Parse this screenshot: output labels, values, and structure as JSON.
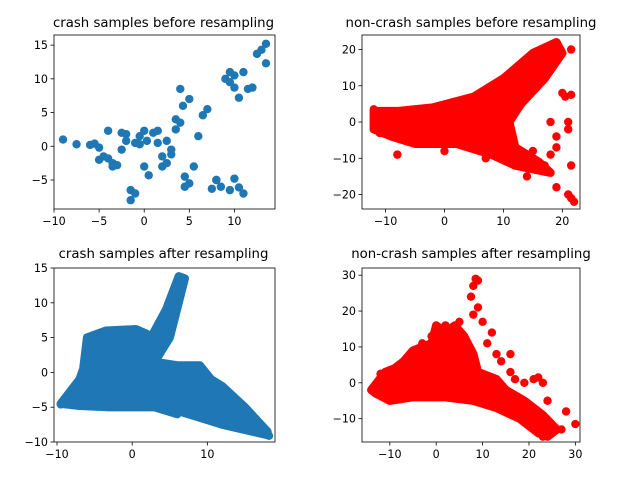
{
  "chart_data": [
    {
      "type": "scatter",
      "title": "crash samples before resampling",
      "color": "#1f77b4",
      "marker_style": "points",
      "xlim": [
        -10,
        14.5
      ],
      "ylim": [
        -9.3,
        16.5
      ],
      "xticks": [
        -10,
        -5,
        0,
        5,
        10
      ],
      "yticks": [
        -5,
        0,
        5,
        10,
        15
      ],
      "xlabel": "",
      "ylabel": "",
      "x": [
        -9,
        -7.5,
        -6,
        -5.5,
        -5,
        -5,
        -4.5,
        -4,
        -4,
        -3.5,
        -3.5,
        -3,
        -2.5,
        -2.5,
        -2,
        -2,
        -1.5,
        -1.5,
        -1,
        -1,
        -0.5,
        -0.5,
        0,
        0,
        0.3,
        0.5,
        1,
        1.5,
        1.5,
        2,
        2,
        2.5,
        2.5,
        3,
        3,
        3.5,
        3.5,
        4,
        4,
        4.3,
        4.5,
        4.5,
        5,
        5,
        5.5,
        6,
        6.5,
        7,
        7.5,
        8,
        8.5,
        9,
        9.5,
        9.5,
        10,
        10,
        10,
        10.5,
        11,
        11.5,
        12,
        12.5,
        13,
        13.5,
        13.5,
        10.5,
        9.5,
        8,
        11
      ],
      "y": [
        1,
        0.3,
        0.2,
        0.4,
        -0.2,
        -2,
        -1.5,
        2.3,
        -1.8,
        -2.5,
        -3,
        -2.8,
        2,
        -0.5,
        1.8,
        0.8,
        -8,
        -6.5,
        0.5,
        -7,
        1.5,
        0.3,
        2.3,
        -3,
        0.8,
        -4.3,
        2,
        0.5,
        2.3,
        -1.5,
        -3,
        0.8,
        -2.5,
        -1.2,
        -0.5,
        4,
        2.5,
        3.5,
        8.5,
        6,
        -4.5,
        -6,
        -5.5,
        7,
        -3,
        1.5,
        4.6,
        5.5,
        -6.3,
        -5,
        -6,
        10,
        9.5,
        11,
        8.7,
        10.5,
        -4.8,
        7.2,
        11,
        8.5,
        8.7,
        13.7,
        14.3,
        12.3,
        15.2,
        -6.1,
        -6.5,
        -5,
        -7
      ]
    },
    {
      "type": "scatter",
      "title": "non-crash samples before resampling",
      "color": "#ff0000",
      "marker_style": "dense-cloud",
      "xlim": [
        -14,
        23
      ],
      "ylim": [
        -24,
        24
      ],
      "xticks": [
        -10,
        0,
        10,
        20
      ],
      "yticks": [
        -20,
        -10,
        0,
        10,
        20
      ],
      "xlabel": "",
      "ylabel": "",
      "hull": [
        [
          -12,
          3
        ],
        [
          -8,
          3
        ],
        [
          -2,
          4
        ],
        [
          5,
          7
        ],
        [
          10,
          12
        ],
        [
          15,
          19
        ],
        [
          19,
          22
        ],
        [
          20,
          19
        ],
        [
          17,
          12
        ],
        [
          13,
          5
        ],
        [
          11,
          0
        ],
        [
          12,
          -7
        ],
        [
          16,
          -11
        ],
        [
          18,
          -14
        ],
        [
          12,
          -12
        ],
        [
          8,
          -9
        ],
        [
          2,
          -6
        ],
        [
          -5,
          -6
        ],
        [
          -9,
          -4
        ],
        [
          -12,
          -2
        ]
      ],
      "outliers": [
        [
          20,
          8
        ],
        [
          20.5,
          7
        ],
        [
          21.5,
          20
        ],
        [
          21.5,
          7.5
        ],
        [
          21,
          0
        ],
        [
          21.5,
          -12
        ],
        [
          19,
          -18
        ],
        [
          21,
          -20
        ],
        [
          21.5,
          -21
        ],
        [
          22,
          -22
        ],
        [
          19,
          -7
        ],
        [
          18,
          -9
        ],
        [
          17,
          -12
        ],
        [
          13,
          -12
        ],
        [
          14,
          -15
        ],
        [
          15,
          -8
        ],
        [
          21,
          -2
        ],
        [
          19,
          -4
        ],
        [
          18,
          0
        ],
        [
          -8,
          -9
        ],
        [
          -12,
          3.5
        ],
        [
          -11,
          -3
        ],
        [
          -5,
          -5
        ],
        [
          0,
          -8
        ],
        [
          7,
          -10
        ]
      ]
    },
    {
      "type": "scatter",
      "title": "crash samples after resampling",
      "color": "#1f77b4",
      "marker_style": "dense-cloud",
      "xlim": [
        -10.4,
        19
      ],
      "ylim": [
        -10,
        15
      ],
      "xticks": [
        -10,
        0,
        10
      ],
      "yticks": [
        -10,
        -5,
        0,
        5,
        10,
        15
      ],
      "xlabel": "",
      "ylabel": "",
      "hull": [
        [
          -9.5,
          -4.5
        ],
        [
          -7,
          -1
        ],
        [
          -6.5,
          0.5
        ],
        [
          -6,
          5
        ],
        [
          -3.5,
          6
        ],
        [
          0.5,
          6.2
        ],
        [
          2,
          5.5
        ],
        [
          1.5,
          3
        ],
        [
          3,
          6
        ],
        [
          4.5,
          9
        ],
        [
          6.2,
          13.8
        ],
        [
          7,
          13.5
        ],
        [
          5,
          5
        ],
        [
          3,
          1.5
        ],
        [
          6,
          1
        ],
        [
          9,
          1
        ],
        [
          10.5,
          -1
        ],
        [
          12,
          -2
        ],
        [
          15,
          -5
        ],
        [
          18,
          -8.5
        ],
        [
          18,
          -9
        ],
        [
          12,
          -7.5
        ],
        [
          9,
          -6.5
        ],
        [
          6,
          -5.5
        ],
        [
          6,
          -6
        ],
        [
          3,
          -5
        ],
        [
          -3,
          -5
        ],
        [
          -7,
          -4.8
        ]
      ],
      "outliers": [
        [
          -9.5,
          -4.6
        ],
        [
          18.2,
          -9.1
        ]
      ]
    },
    {
      "type": "scatter",
      "title": "non-crash samples after resampling",
      "color": "#ff0000",
      "marker_style": "dense-cloud",
      "xlim": [
        -16,
        31
      ],
      "ylim": [
        -16.5,
        32
      ],
      "xticks": [
        -10,
        0,
        10,
        20,
        30
      ],
      "yticks": [
        -10,
        0,
        10,
        20,
        30
      ],
      "xlabel": "",
      "ylabel": "",
      "hull": [
        [
          -14,
          -2
        ],
        [
          -11,
          3
        ],
        [
          -9,
          4
        ],
        [
          -7,
          6
        ],
        [
          -5,
          9
        ],
        [
          -1,
          11
        ],
        [
          0,
          16
        ],
        [
          2,
          14
        ],
        [
          4,
          16
        ],
        [
          6,
          13
        ],
        [
          8,
          8
        ],
        [
          9,
          3
        ],
        [
          13,
          1
        ],
        [
          15,
          -2
        ],
        [
          19,
          -5
        ],
        [
          23,
          -9
        ],
        [
          26,
          -13
        ],
        [
          24,
          -15
        ],
        [
          22,
          -14
        ],
        [
          18,
          -10
        ],
        [
          13,
          -7
        ],
        [
          8,
          -5
        ],
        [
          2,
          -4
        ],
        [
          -5,
          -4
        ],
        [
          -10,
          -5
        ],
        [
          -13,
          -3
        ]
      ],
      "outliers": [
        [
          8.5,
          29
        ],
        [
          9,
          28.5
        ],
        [
          8,
          27
        ],
        [
          7.5,
          24
        ],
        [
          9,
          21
        ],
        [
          8,
          19
        ],
        [
          10,
          17
        ],
        [
          12,
          14
        ],
        [
          11,
          11
        ],
        [
          13,
          8
        ],
        [
          14,
          6
        ],
        [
          16,
          8
        ],
        [
          16,
          3
        ],
        [
          17,
          1
        ],
        [
          19,
          0
        ],
        [
          21,
          1
        ],
        [
          23,
          0
        ],
        [
          22,
          1.5
        ],
        [
          24,
          -5
        ],
        [
          28,
          -8
        ],
        [
          30,
          -11.5
        ],
        [
          25,
          -12
        ],
        [
          27,
          -13
        ],
        [
          23,
          -15
        ],
        [
          -12,
          2.5
        ],
        [
          -10,
          -4
        ],
        [
          -8,
          -1
        ],
        [
          -3,
          11
        ],
        [
          -5,
          8
        ],
        [
          2,
          16
        ],
        [
          5,
          17
        ],
        [
          -1,
          13
        ]
      ]
    }
  ]
}
